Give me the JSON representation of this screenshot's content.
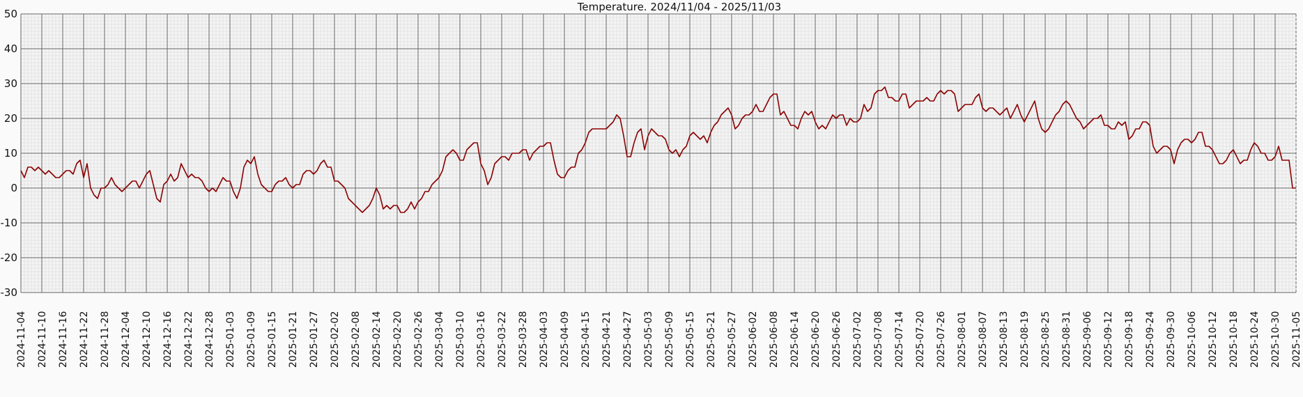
{
  "chart_data": {
    "type": "line",
    "title": "Temperature. 2024/11/04 - 2025/11/03",
    "xlabel": "",
    "ylabel": "",
    "ylim": [
      -30,
      50
    ],
    "yticks": [
      "50",
      "40",
      "30",
      "20",
      "10",
      "0",
      "-10",
      "-20",
      "-30"
    ],
    "ytick_values": [
      50,
      40,
      30,
      20,
      10,
      0,
      -10,
      -20,
      -30
    ],
    "grid": true,
    "x_start": "2024-11-04",
    "x_step_days": 1,
    "x_tick_step_days": 6,
    "xticks": [
      "2024-11-04",
      "2024-11-10",
      "2024-11-16",
      "2024-11-22",
      "2024-11-28",
      "2024-12-04",
      "2024-12-10",
      "2024-12-16",
      "2024-12-22",
      "2024-12-28",
      "2025-01-03",
      "2025-01-09",
      "2025-01-15",
      "2025-01-21",
      "2025-01-27",
      "2025-02-02",
      "2025-02-08",
      "2025-02-14",
      "2025-02-20",
      "2025-02-26",
      "2025-03-04",
      "2025-03-10",
      "2025-03-16",
      "2025-03-22",
      "2025-03-28",
      "2025-04-03",
      "2025-04-09",
      "2025-04-15",
      "2025-04-21",
      "2025-04-27",
      "2025-05-03",
      "2025-05-09",
      "2025-05-15",
      "2025-05-21",
      "2025-05-27",
      "2025-06-02",
      "2025-06-08",
      "2025-06-14",
      "2025-06-20",
      "2025-06-26",
      "2025-07-02",
      "2025-07-08",
      "2025-07-14",
      "2025-07-20",
      "2025-07-26",
      "2025-08-01",
      "2025-08-07",
      "2025-08-13",
      "2025-08-19",
      "2025-08-25",
      "2025-08-31",
      "2025-09-06",
      "2025-09-12",
      "2025-09-18",
      "2025-09-24",
      "2025-09-30",
      "2025-10-06",
      "2025-10-12",
      "2025-10-18",
      "2025-10-24",
      "2025-10-30",
      "2025-11-05"
    ],
    "series": [
      {
        "name": "Temperature",
        "color": "#8b0000",
        "values": [
          5,
          3,
          6,
          6,
          5,
          6,
          5,
          4,
          5,
          4,
          3,
          3,
          4,
          5,
          5,
          4,
          7,
          8,
          3,
          7,
          0,
          -2,
          -3,
          0,
          0,
          1,
          3,
          1,
          0,
          -1,
          0,
          1,
          2,
          2,
          0,
          2,
          4,
          5,
          1,
          -3,
          -4,
          1,
          2,
          4,
          2,
          3,
          7,
          5,
          3,
          4,
          3,
          3,
          2,
          0,
          -1,
          0,
          -1,
          1,
          3,
          2,
          2,
          -1,
          -3,
          0,
          6,
          8,
          7,
          9,
          4,
          1,
          0,
          -1,
          -1,
          1,
          2,
          2,
          3,
          1,
          0,
          1,
          1,
          4,
          5,
          5,
          4,
          5,
          7,
          8,
          6,
          6,
          2,
          2,
          1,
          0,
          -3,
          -4,
          -5,
          -6,
          -7,
          -6,
          -5,
          -3,
          0,
          -2,
          -6,
          -5,
          -6,
          -5,
          -5,
          -7,
          -7,
          -6,
          -4,
          -6,
          -4,
          -3,
          -1,
          -1,
          1,
          2,
          3,
          5,
          9,
          10,
          11,
          10,
          8,
          8,
          11,
          12,
          13,
          13,
          7,
          5,
          1,
          3,
          7,
          8,
          9,
          9,
          8,
          10,
          10,
          10,
          11,
          11,
          8,
          10,
          11,
          12,
          12,
          13,
          13,
          8,
          4,
          3,
          3,
          5,
          6,
          6,
          10,
          11,
          13,
          16,
          17,
          17,
          17,
          17,
          17,
          18,
          19,
          21,
          20,
          15,
          9,
          9,
          13,
          16,
          17,
          11,
          15,
          17,
          16,
          15,
          15,
          14,
          11,
          10,
          11,
          9,
          11,
          12,
          15,
          16,
          15,
          14,
          15,
          13,
          16,
          18,
          19,
          21,
          22,
          23,
          21,
          17,
          18,
          20,
          21,
          21,
          22,
          24,
          22,
          22,
          24,
          26,
          27,
          27,
          21,
          22,
          20,
          18,
          18,
          17,
          20,
          22,
          21,
          22,
          19,
          17,
          18,
          17,
          19,
          21,
          20,
          21,
          21,
          18,
          20,
          19,
          19,
          20,
          24,
          22,
          23,
          27,
          28,
          28,
          29,
          26,
          26,
          25,
          25,
          27,
          27,
          23,
          24,
          25,
          25,
          25,
          26,
          25,
          25,
          27,
          28,
          27,
          28,
          28,
          27,
          22,
          23,
          24,
          24,
          24,
          26,
          27,
          23,
          22,
          23,
          23,
          22,
          21,
          22,
          23,
          20,
          22,
          24,
          21,
          19,
          21,
          23,
          25,
          20,
          17,
          16,
          17,
          19,
          21,
          22,
          24,
          25,
          24,
          22,
          20,
          19,
          17,
          18,
          19,
          20,
          20,
          21,
          18,
          18,
          17,
          17,
          19,
          18,
          19,
          14,
          15,
          17,
          17,
          19,
          19,
          18,
          12,
          10,
          11,
          12,
          12,
          11,
          7,
          11,
          13,
          14,
          14,
          13,
          14,
          16,
          16,
          12,
          12,
          11,
          9,
          7,
          7,
          8,
          10,
          11,
          9,
          7,
          8,
          8,
          11,
          13,
          12,
          10,
          10,
          8,
          8,
          9,
          12,
          8,
          8,
          8,
          0,
          0
        ]
      }
    ]
  }
}
